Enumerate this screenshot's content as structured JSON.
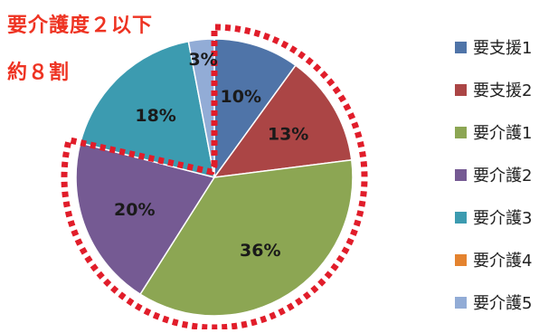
{
  "callout": {
    "line1": "要介護度２以下",
    "line2": "約８割"
  },
  "chart_data": {
    "type": "pie",
    "title": "",
    "start": "top",
    "direction": "clockwise",
    "legend": "right",
    "slices": [
      {
        "name": "要支援1",
        "value": 10,
        "label": "10%",
        "color": "#4f74a8"
      },
      {
        "name": "要支援2",
        "value": 13,
        "label": "13%",
        "color": "#ab4545"
      },
      {
        "name": "要介護1",
        "value": 36,
        "label": "36%",
        "color": "#8ca653"
      },
      {
        "name": "要介護2",
        "value": 20,
        "label": "20%",
        "color": "#755a93"
      },
      {
        "name": "要介護3",
        "value": 18,
        "label": "18%",
        "color": "#3c9bb0"
      },
      {
        "name": "要介護4",
        "value": 0,
        "label": "",
        "color": "#e4832f"
      },
      {
        "name": "要介護5",
        "value": 3,
        "label": "3%",
        "color": "#92acd6"
      }
    ],
    "highlight": {
      "slices": [
        "要支援1",
        "要支援2",
        "要介護1",
        "要介護2"
      ],
      "style": "red-dotted-outline",
      "color": "#e11d2a"
    }
  }
}
